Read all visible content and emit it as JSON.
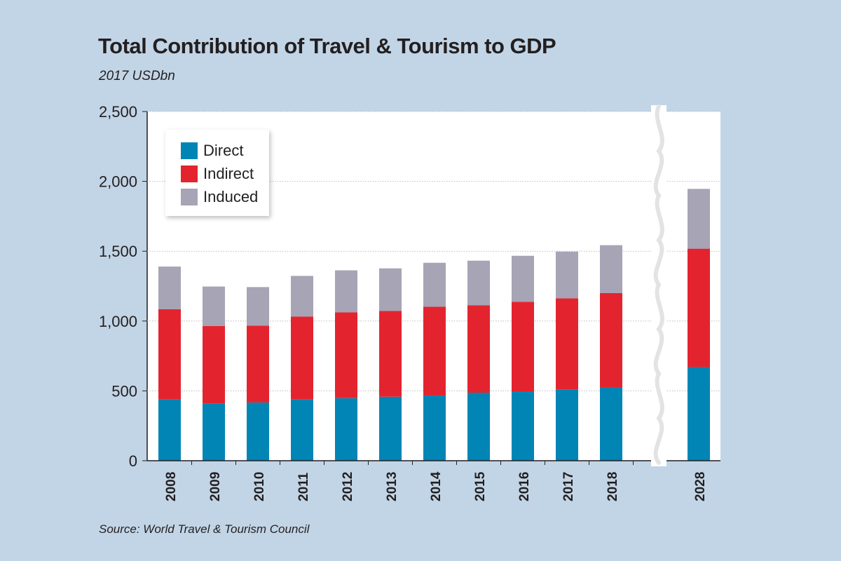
{
  "chart_data": {
    "type": "bar",
    "stacked": true,
    "title": "Total Contribution of Travel & Tourism to GDP",
    "subtitle": "2017 USDbn",
    "source": "Source: World Travel & Tourism Council",
    "categories": [
      "2008",
      "2009",
      "2010",
      "2011",
      "2012",
      "2013",
      "2014",
      "2015",
      "2016",
      "2017",
      "2018",
      "2028"
    ],
    "series": [
      {
        "name": "Direct",
        "color": "#0085b5",
        "values": [
          440,
          408,
          417,
          438,
          448,
          458,
          467,
          487,
          497,
          508,
          527,
          670
        ]
      },
      {
        "name": "Indirect",
        "color": "#e3242f",
        "values": [
          645,
          557,
          550,
          594,
          614,
          614,
          635,
          625,
          641,
          654,
          673,
          848
        ]
      },
      {
        "name": "Induced",
        "color": "#a6a4b5",
        "values": [
          305,
          282,
          276,
          291,
          301,
          305,
          315,
          320,
          329,
          335,
          343,
          428
        ]
      }
    ],
    "yticks": [
      "0",
      "500",
      "1,000",
      "1,500",
      "2,000",
      "2,500"
    ],
    "ylim": [
      0,
      2500
    ],
    "grid": true,
    "axis_break": "between 2018 and 2028",
    "legend_position": "top-left"
  }
}
